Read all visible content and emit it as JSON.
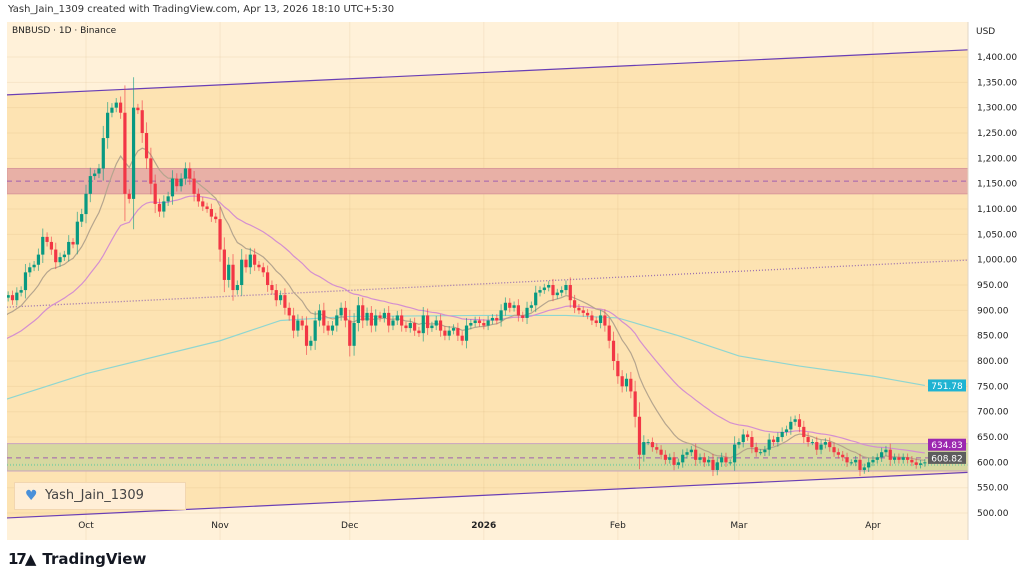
{
  "header": {
    "credit": "Yash_Jain_1309 created with TradingView.com, Apr 13, 2026 18:10 UTC+5:30",
    "symbol": "BNBUSD · 1D · Binance",
    "currency": "USD"
  },
  "watermark": "Yash_Jain_1309",
  "logo": "TradingView",
  "chart_data": {
    "type": "candlestick",
    "start_date": "2025-09-12",
    "end_date": "2026-04-13",
    "interval": "1D",
    "closes": [
      925,
      930,
      920,
      935,
      940,
      975,
      985,
      990,
      1010,
      1045,
      1035,
      1020,
      995,
      1005,
      1010,
      1035,
      1030,
      1075,
      1090,
      1130,
      1165,
      1170,
      1180,
      1240,
      1290,
      1300,
      1310,
      1290,
      1130,
      1120,
      1300,
      1295,
      1250,
      1200,
      1150,
      1110,
      1095,
      1115,
      1125,
      1160,
      1145,
      1160,
      1180,
      1160,
      1130,
      1115,
      1105,
      1100,
      1085,
      1080,
      1020,
      960,
      990,
      940,
      950,
      1000,
      985,
      1010,
      990,
      985,
      975,
      950,
      940,
      920,
      930,
      905,
      890,
      860,
      880,
      870,
      830,
      840,
      880,
      900,
      870,
      860,
      870,
      890,
      905,
      880,
      830,
      875,
      910,
      880,
      895,
      870,
      890,
      885,
      895,
      870,
      880,
      890,
      870,
      865,
      875,
      860,
      855,
      890,
      865,
      870,
      880,
      860,
      850,
      860,
      865,
      850,
      840,
      870,
      875,
      880,
      875,
      870,
      880,
      885,
      880,
      900,
      915,
      905,
      910,
      890,
      885,
      905,
      910,
      935,
      940,
      945,
      950,
      930,
      935,
      940,
      950,
      920,
      905,
      900,
      895,
      890,
      880,
      875,
      890,
      870,
      840,
      800,
      770,
      750,
      765,
      740,
      690,
      615,
      640,
      640,
      630,
      625,
      615,
      605,
      610,
      595,
      600,
      615,
      620,
      625,
      605,
      610,
      600,
      605,
      585,
      600,
      610,
      600,
      600,
      635,
      640,
      655,
      650,
      630,
      620,
      620,
      625,
      645,
      640,
      650,
      660,
      665,
      680,
      685,
      670,
      650,
      640,
      640,
      625,
      635,
      640,
      630,
      620,
      615,
      610,
      600,
      600,
      605,
      585,
      590,
      600,
      605,
      610,
      620,
      625,
      605,
      610,
      605,
      610,
      605,
      600,
      595,
      598,
      600
    ],
    "ma_long": [
      [
        "2025-09-12",
        723
      ],
      [
        "2025-10-01",
        775
      ],
      [
        "2025-11-01",
        840
      ],
      [
        "2025-11-15",
        880
      ],
      [
        "2025-12-01",
        888
      ],
      [
        "2026-01-01",
        890
      ],
      [
        "2026-01-20",
        890
      ],
      [
        "2026-02-01",
        885
      ],
      [
        "2026-02-15",
        850
      ],
      [
        "2026-03-01",
        810
      ],
      [
        "2026-03-15",
        790
      ],
      [
        "2026-04-01",
        770
      ],
      [
        "2026-04-13",
        751.78
      ]
    ],
    "y_axis": {
      "min": 480,
      "max": 1440,
      "ticks": [
        500,
        550,
        600,
        650,
        700,
        750,
        800,
        850,
        900,
        950,
        1000,
        1050,
        1100,
        1150,
        1200,
        1250,
        1300,
        1350,
        1400
      ],
      "labels": [
        "500.00",
        "550.00",
        "600.00",
        "650.00",
        "700.00",
        "750.00",
        "800.00",
        "850.00",
        "900.00",
        "950.00",
        "1,000.00",
        "1,050.00",
        "1,100.00",
        "1,150.00",
        "1,200.00",
        "1,250.00",
        "1,300.00",
        "1,350.00",
        "1,400.00"
      ]
    },
    "x_axis": {
      "ticks": [
        {
          "label": "Oct",
          "date": "2025-10-01",
          "bold": false
        },
        {
          "label": "Nov",
          "date": "2025-11-01",
          "bold": false
        },
        {
          "label": "Dec",
          "date": "2025-12-01",
          "bold": false
        },
        {
          "label": "2026",
          "date": "2026-01-01",
          "bold": true
        },
        {
          "label": "Feb",
          "date": "2026-02-01",
          "bold": false
        },
        {
          "label": "Mar",
          "date": "2026-03-01",
          "bold": false
        },
        {
          "label": "Apr",
          "date": "2026-04-01",
          "bold": false
        }
      ]
    },
    "channel": {
      "upper": [
        [
          "2025-09-12",
          1325
        ],
        [
          "2026-04-25",
          1415
        ]
      ],
      "lower": [
        [
          "2025-09-12",
          490
        ],
        [
          "2026-04-25",
          581
        ]
      ]
    },
    "dotted_trendline": [
      [
        "2025-09-12",
        906
      ],
      [
        "2026-04-25",
        1000
      ]
    ],
    "resistance_zone": {
      "low": 1130,
      "high": 1180,
      "mid": 1155,
      "color": "#e8b0a6"
    },
    "support_zone": {
      "low": 583,
      "high": 637,
      "mid": 608.82,
      "dotted": 595,
      "color": "#d6d8a0"
    },
    "price_labels": [
      {
        "value": "751.78",
        "color": "#1fb3d2"
      },
      {
        "value": "634.83",
        "color": "#9c27b0"
      },
      {
        "value": "608.82",
        "color": "#5d5d5d"
      }
    ],
    "colors": {
      "up": "#089981",
      "down": "#f23645",
      "ma_short": "#b5a58e",
      "ma_mid": "#d48fd0",
      "ma_long": "#8fd6d0",
      "channel": "#6a3fb5"
    }
  }
}
